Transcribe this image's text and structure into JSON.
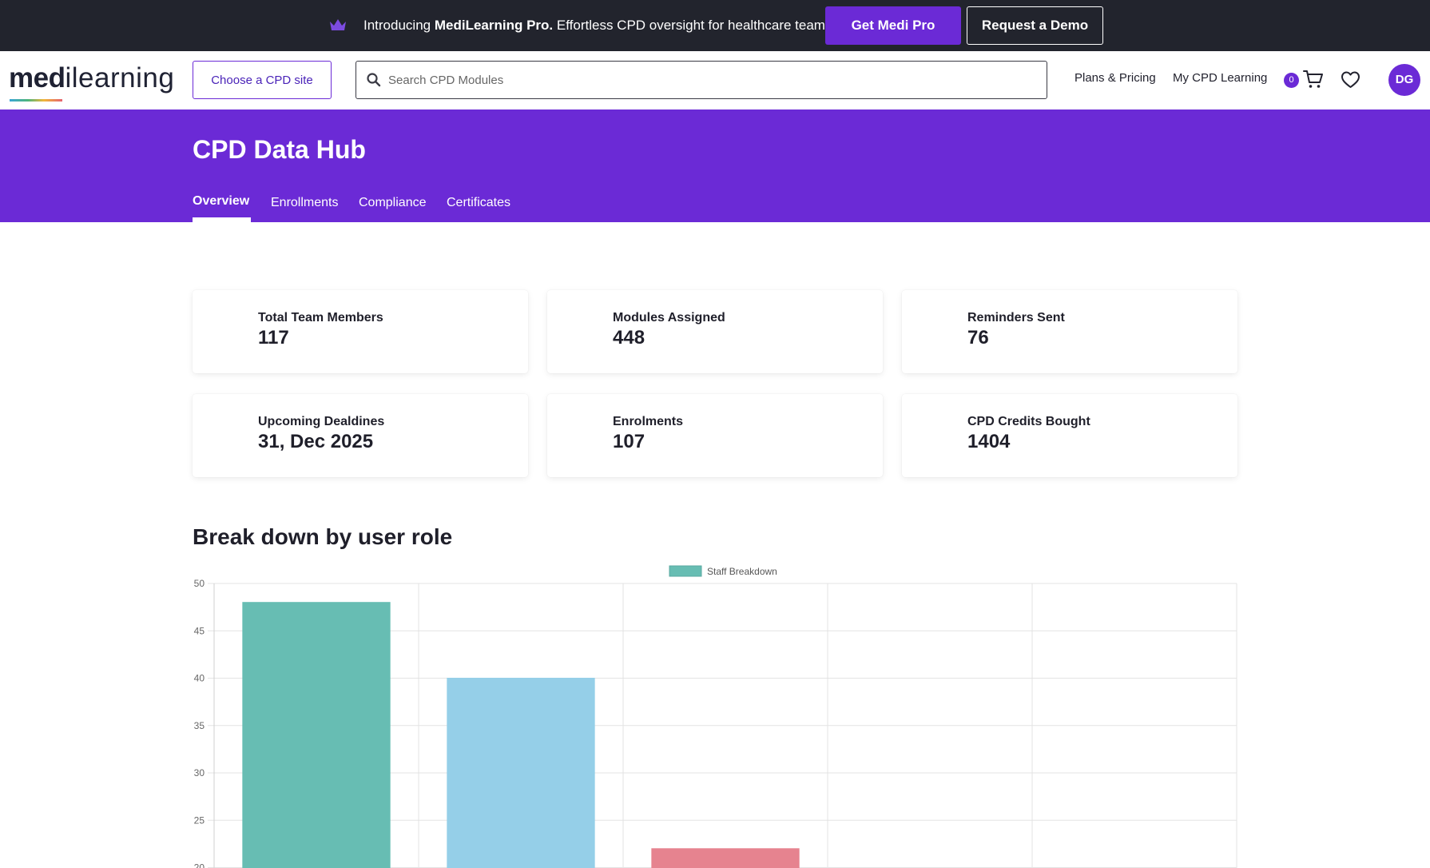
{
  "promo": {
    "intro": "Introducing",
    "product": "MediLearning Pro.",
    "tagline": "Effortless CPD oversight for healthcare teams",
    "primary_button": "Get Medi Pro",
    "secondary_button": "Request a Demo",
    "icon": "crown-icon"
  },
  "header": {
    "logo_bold": "med",
    "logo_rest": "ilearning",
    "choose_site_label": "Choose a CPD site",
    "search_placeholder": "Search CPD Modules",
    "nav": {
      "plans": "Plans & Pricing",
      "my_learning": "My CPD Learning"
    },
    "cart_count": "0",
    "avatar_initials": "DG"
  },
  "hero": {
    "title": "CPD Data Hub",
    "tabs": [
      "Overview",
      "Enrollments",
      "Compliance",
      "Certificates"
    ],
    "active_tab": "Overview"
  },
  "stats": [
    {
      "label": "Total Team Members",
      "value": "117"
    },
    {
      "label": "Modules Assigned",
      "value": "448"
    },
    {
      "label": "Reminders Sent",
      "value": "76"
    },
    {
      "label": "Upcoming Dealdines",
      "value": "31, Dec 2025"
    },
    {
      "label": "Enrolments",
      "value": "107"
    },
    {
      "label": "CPD Credits Bought",
      "value": "1404"
    }
  ],
  "section_title": "Break down by user role",
  "colors": {
    "brand": "#6b2ad6",
    "promo_bg": "#22242d"
  },
  "chart_data": {
    "type": "bar",
    "title": "",
    "xlabel": "",
    "ylabel": "",
    "legend": "top-center",
    "series": [
      {
        "name": "Staff Breakdown",
        "values": [
          48,
          40,
          22
        ],
        "colors": [
          "#67bdb3",
          "#95cfe8",
          "#e6838f"
        ]
      }
    ],
    "ylim": [
      20,
      50
    ],
    "yticks": [
      50,
      45,
      40,
      35,
      30,
      25,
      20
    ],
    "grid": true
  }
}
